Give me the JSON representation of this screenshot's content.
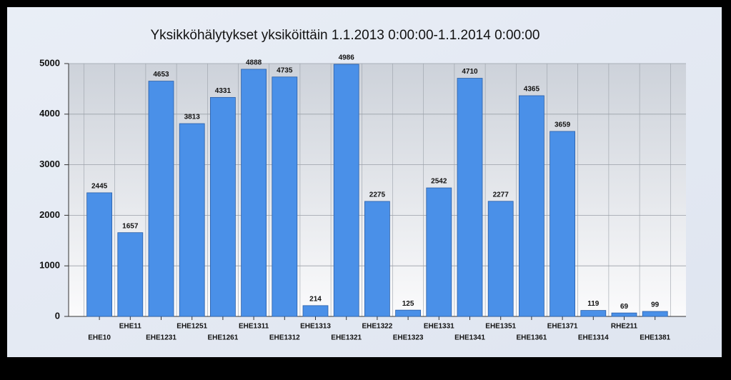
{
  "chart_data": {
    "type": "bar",
    "title": "Yksikköhälytykset yksiköittäin 1.1.2013 0:00:00-1.1.2014 0:00:00",
    "categories": [
      "EHE10",
      "EHE11",
      "EHE1231",
      "EHE1251",
      "EHE1261",
      "EHE1311",
      "EHE1312",
      "EHE1313",
      "EHE1321",
      "EHE1322",
      "EHE1323",
      "EHE1331",
      "EHE1341",
      "EHE1351",
      "EHE1361",
      "EHE1371",
      "EHE1314",
      "RHE211",
      "EHE1381"
    ],
    "values": [
      2445,
      1657,
      4653,
      3813,
      4331,
      4888,
      4735,
      214,
      4986,
      2275,
      125,
      2542,
      4710,
      2277,
      4365,
      3659,
      119,
      69,
      99
    ],
    "color": "#4a90e8",
    "ylim": [
      0,
      5000
    ],
    "yticks": [
      0,
      1000,
      2000,
      3000,
      4000,
      5000
    ],
    "grid": true
  }
}
